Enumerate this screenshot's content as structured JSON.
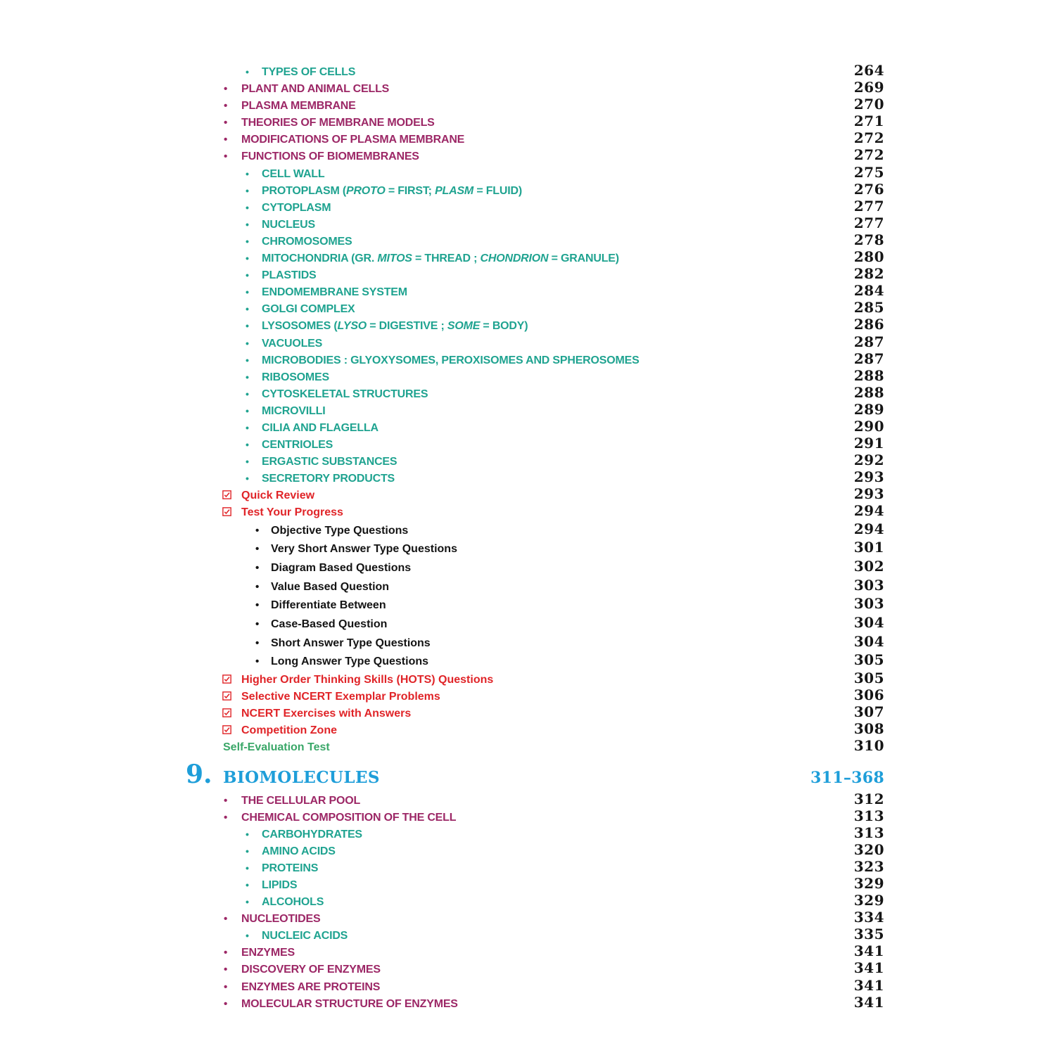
{
  "colors": {
    "level1": "#9c2766",
    "level2": "#1fa390",
    "checklist": "#e02428",
    "subitem": "#141414",
    "self_eval": "#3aa768",
    "chapter": "#1e9ed9",
    "page_number": "#151515"
  },
  "note": "In labels, text wrapped in * * is rendered italic.",
  "toc": {
    "rows": [
      {
        "type": "l2",
        "label": "TYPES OF CELLS",
        "page": "264"
      },
      {
        "type": "l1",
        "label": "PLANT AND ANIMAL CELLS",
        "page": "269"
      },
      {
        "type": "l1",
        "label": "PLASMA MEMBRANE",
        "page": "270"
      },
      {
        "type": "l1",
        "label": "THEORIES OF MEMBRANE MODELS",
        "page": "271"
      },
      {
        "type": "l1",
        "label": "MODIFICATIONS OF PLASMA MEMBRANE",
        "page": "272"
      },
      {
        "type": "l1",
        "label": "FUNCTIONS OF BIOMEMBRANES",
        "page": "272"
      },
      {
        "type": "l2",
        "label": "CELL WALL",
        "page": "275"
      },
      {
        "type": "l2",
        "label": "PROTOPLASM (*PROTO* = FIRST; *PLASM* = FLUID)",
        "page": "276"
      },
      {
        "type": "l2",
        "label": "CYTOPLASM",
        "page": "277"
      },
      {
        "type": "l2",
        "label": "NUCLEUS",
        "page": "277"
      },
      {
        "type": "l2",
        "label": "CHROMOSOMES",
        "page": "278"
      },
      {
        "type": "l2",
        "label": "MITOCHONDRIA (GR. *MITOS* = THREAD ; *CHONDRION* = GRANULE)",
        "page": "280"
      },
      {
        "type": "l2",
        "label": "PLASTIDS",
        "page": "282"
      },
      {
        "type": "l2",
        "label": "ENDOMEMBRANE SYSTEM",
        "page": "284"
      },
      {
        "type": "l2",
        "label": "GOLGI COMPLEX",
        "page": "285"
      },
      {
        "type": "l2",
        "label": "LYSOSOMES (*LYSO* = DIGESTIVE ; *SOME* = BODY)",
        "page": "286"
      },
      {
        "type": "l2",
        "label": "VACUOLES",
        "page": "287"
      },
      {
        "type": "l2",
        "label": "MICROBODIES : GLYOXYSOMES, PEROXISOMES AND SPHEROSOMES",
        "page": "287"
      },
      {
        "type": "l2",
        "label": "RIBOSOMES",
        "page": "288"
      },
      {
        "type": "l2",
        "label": "CYTOSKELETAL STRUCTURES",
        "page": "288"
      },
      {
        "type": "l2",
        "label": "MICROVILLI",
        "page": "289"
      },
      {
        "type": "l2",
        "label": "CILIA AND FLAGELLA",
        "page": "290"
      },
      {
        "type": "l2",
        "label": "CENTRIOLES",
        "page": "291"
      },
      {
        "type": "l2",
        "label": "ERGASTIC SUBSTANCES",
        "page": "292"
      },
      {
        "type": "l2",
        "label": "SECRETORY PRODUCTS",
        "page": "293"
      },
      {
        "type": "check",
        "label": "Quick Review",
        "page": "293"
      },
      {
        "type": "check",
        "label": "Test Your Progress",
        "page": "294"
      },
      {
        "type": "sub",
        "label": "Objective Type Questions",
        "page": "294"
      },
      {
        "type": "sub",
        "label": "Very Short Answer Type Questions",
        "page": "301"
      },
      {
        "type": "sub",
        "label": "Diagram Based Questions",
        "page": "302"
      },
      {
        "type": "sub",
        "label": "Value Based Question",
        "page": "303"
      },
      {
        "type": "sub",
        "label": "Differentiate Between",
        "page": "303"
      },
      {
        "type": "sub",
        "label": "Case-Based Question",
        "page": "304"
      },
      {
        "type": "sub",
        "label": "Short Answer Type Questions",
        "page": "304"
      },
      {
        "type": "sub",
        "label": "Long Answer Type Questions",
        "page": "305"
      },
      {
        "type": "check",
        "label": "Higher Order Thinking Skills (HOTS) Questions",
        "page": "305"
      },
      {
        "type": "check",
        "label": "Selective NCERT Exemplar Problems",
        "page": "306"
      },
      {
        "type": "check",
        "label": "NCERT Exercises with Answers",
        "page": "307"
      },
      {
        "type": "check",
        "label": "Competition Zone",
        "page": "308"
      },
      {
        "type": "green",
        "label": "Self-Evaluation Test",
        "page": "310"
      },
      {
        "type": "chapter",
        "number": "9.",
        "label": "BIOMOLECULES",
        "page": "311–368"
      },
      {
        "type": "l1",
        "label": "THE CELLULAR POOL",
        "page": "312"
      },
      {
        "type": "l1",
        "label": "CHEMICAL COMPOSITION OF THE CELL",
        "page": "313"
      },
      {
        "type": "l2",
        "label": "CARBOHYDRATES",
        "page": "313"
      },
      {
        "type": "l2",
        "label": "AMINO ACIDS",
        "page": "320"
      },
      {
        "type": "l2",
        "label": "PROTEINS",
        "page": "323"
      },
      {
        "type": "l2",
        "label": "LIPIDS",
        "page": "329"
      },
      {
        "type": "l2",
        "label": "ALCOHOLS",
        "page": "329"
      },
      {
        "type": "l1",
        "label": "NUCLEOTIDES",
        "page": "334"
      },
      {
        "type": "l2",
        "label": "NUCLEIC ACIDS",
        "page": "335"
      },
      {
        "type": "l1",
        "label": "ENZYMES",
        "page": "341"
      },
      {
        "type": "l1",
        "label": "DISCOVERY OF ENZYMES",
        "page": "341"
      },
      {
        "type": "l1",
        "label": "ENZYMES ARE PROTEINS",
        "page": "341"
      },
      {
        "type": "l1",
        "label": "MOLECULAR STRUCTURE OF ENZYMES",
        "page": "341"
      }
    ]
  }
}
